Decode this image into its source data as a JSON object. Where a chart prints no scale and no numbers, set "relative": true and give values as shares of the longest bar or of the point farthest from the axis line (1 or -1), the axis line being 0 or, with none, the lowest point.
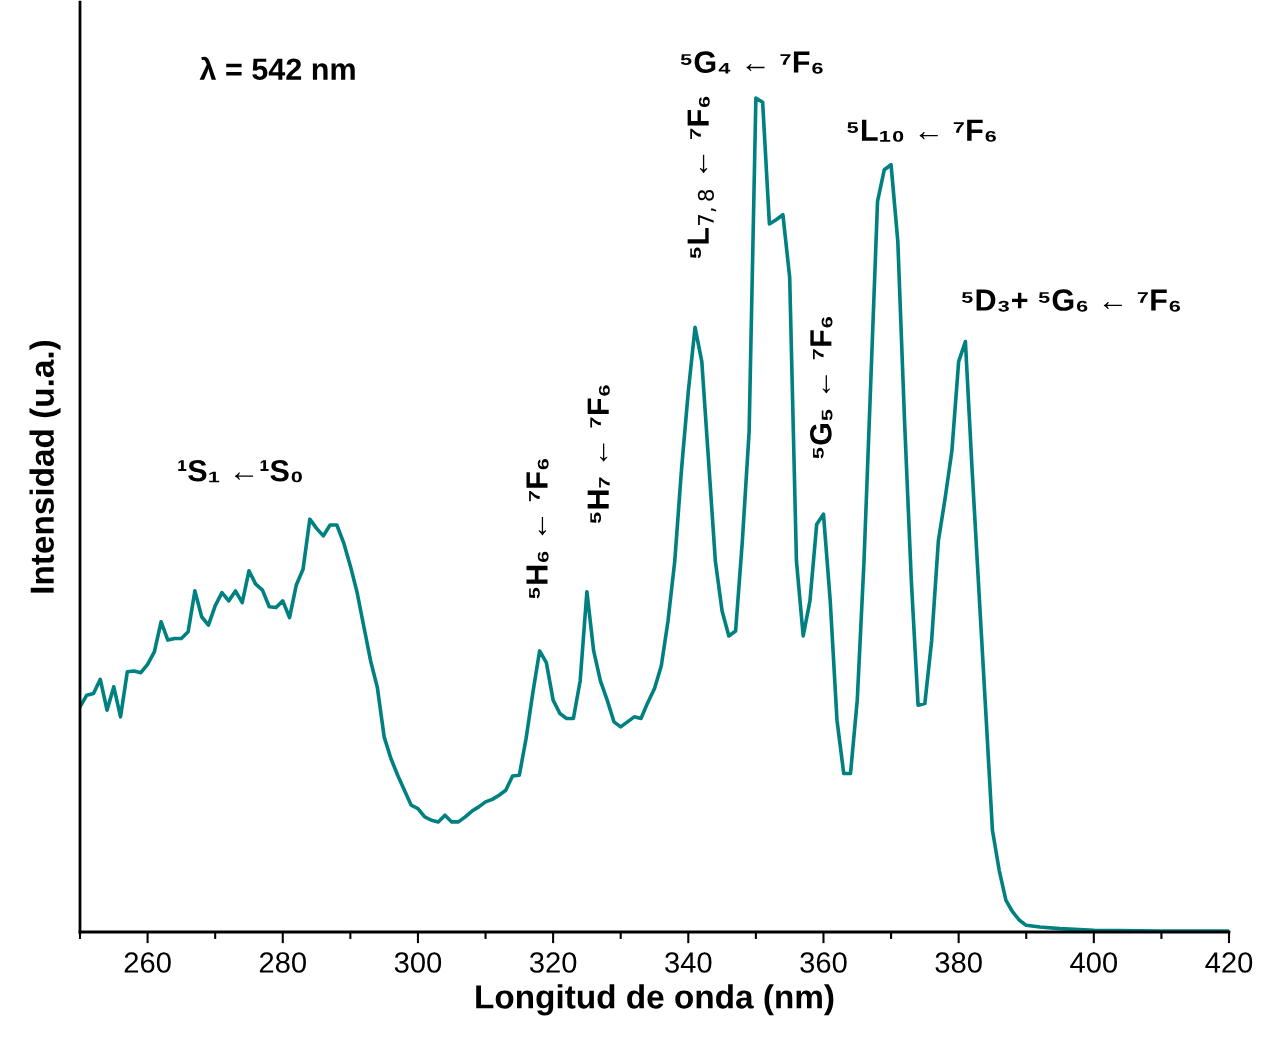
{
  "chart_data": {
    "type": "line",
    "xlabel": "Longitud de onda (nm)",
    "ylabel": "Intensidad (u.a.)",
    "relative": true,
    "x": [
      250,
      251,
      252,
      253,
      254,
      255,
      256,
      257,
      258,
      259,
      260,
      261,
      262,
      263,
      264,
      265,
      266,
      267,
      268,
      269,
      270,
      271,
      272,
      273,
      274,
      275,
      276,
      277,
      278,
      279,
      280,
      281,
      282,
      283,
      284,
      285,
      286,
      287,
      288,
      289,
      290,
      291,
      292,
      293,
      294,
      295,
      296,
      297,
      298,
      299,
      300,
      301,
      302,
      303,
      304,
      305,
      306,
      307,
      308,
      309,
      310,
      311,
      312,
      313,
      314,
      315,
      316,
      317,
      318,
      319,
      320,
      321,
      322,
      323,
      324,
      325,
      326,
      327,
      328,
      329,
      330,
      331,
      332,
      333,
      334,
      335,
      336,
      337,
      338,
      339,
      340,
      341,
      342,
      343,
      344,
      345,
      346,
      347,
      348,
      349,
      350,
      351,
      352,
      353,
      354,
      355,
      356,
      357,
      358,
      359,
      360,
      361,
      362,
      363,
      364,
      365,
      366,
      367,
      368,
      369,
      370,
      371,
      372,
      373,
      374,
      375,
      376,
      377,
      378,
      379,
      380,
      381,
      382,
      383,
      384,
      385,
      386,
      387,
      388,
      389,
      390,
      392,
      395,
      400,
      410,
      420
    ],
    "series": [
      {
        "color": "#008080",
        "values": [
          0.27,
          0.284,
          0.286,
          0.303,
          0.266,
          0.294,
          0.258,
          0.312,
          0.313,
          0.311,
          0.321,
          0.336,
          0.372,
          0.35,
          0.352,
          0.352,
          0.36,
          0.409,
          0.378,
          0.368,
          0.391,
          0.407,
          0.397,
          0.409,
          0.395,
          0.433,
          0.417,
          0.41,
          0.39,
          0.389,
          0.397,
          0.377,
          0.416,
          0.435,
          0.495,
          0.484,
          0.475,
          0.488,
          0.488,
          0.467,
          0.439,
          0.407,
          0.366,
          0.325,
          0.293,
          0.234,
          0.208,
          0.188,
          0.17,
          0.152,
          0.148,
          0.138,
          0.134,
          0.132,
          0.14,
          0.132,
          0.132,
          0.138,
          0.145,
          0.15,
          0.156,
          0.159,
          0.164,
          0.17,
          0.187,
          0.188,
          0.232,
          0.287,
          0.337,
          0.323,
          0.278,
          0.262,
          0.256,
          0.256,
          0.301,
          0.408,
          0.337,
          0.301,
          0.278,
          0.252,
          0.246,
          0.252,
          0.258,
          0.256,
          0.275,
          0.292,
          0.319,
          0.373,
          0.445,
          0.555,
          0.648,
          0.725,
          0.684,
          0.565,
          0.445,
          0.385,
          0.355,
          0.361,
          0.469,
          0.6,
          1.0,
          0.995,
          0.849,
          0.854,
          0.86,
          0.785,
          0.445,
          0.355,
          0.397,
          0.489,
          0.501,
          0.397,
          0.254,
          0.19,
          0.19,
          0.278,
          0.445,
          0.66,
          0.876,
          0.914,
          0.92,
          0.828,
          0.612,
          0.421,
          0.272,
          0.274,
          0.349,
          0.469,
          0.52,
          0.577,
          0.684,
          0.708,
          0.553,
          0.409,
          0.266,
          0.122,
          0.074,
          0.038,
          0.024,
          0.014,
          0.008,
          0.006,
          0.004,
          0.002,
          0.001,
          0.001
        ]
      }
    ],
    "xlim": [
      250,
      420
    ],
    "xticks": [
      {
        "value": 250,
        "label": null
      },
      260,
      {
        "value": 270,
        "label": null
      },
      280,
      {
        "value": 290,
        "label": null
      },
      300,
      {
        "value": 310,
        "label": null
      },
      320,
      {
        "value": 330,
        "label": null
      },
      340,
      {
        "value": 350,
        "label": null
      },
      360,
      {
        "value": 370,
        "label": null
      },
      380,
      {
        "value": 390,
        "label": null
      },
      400,
      {
        "value": 410,
        "label": null
      },
      420
    ],
    "grid": false,
    "legend": false,
    "annotations": [
      "λ = 542 nm",
      {
        "text": "¹S₁ ←¹S₀",
        "x": 284,
        "y": 0.495
      },
      {
        "text": "⁵H₆ ← ⁷F₆",
        "x": 318,
        "y": 0.337
      },
      {
        "text": "⁵H₇ ← ⁷F₆",
        "x": 325,
        "y": 0.408
      },
      {
        "text": "⁵L$_{7,8}$ ← ⁷F₆",
        "x": 341,
        "y": 0.725
      },
      {
        "text": "⁵G₄ ← ⁷F₆",
        "x": 350,
        "y": 1.0
      },
      {
        "text": "⁵G₅ ← ⁷F₆",
        "x": 360,
        "y": 0.501
      },
      {
        "text": "⁵L₁₀ ← ⁷F₆",
        "x": 370,
        "y": 0.92
      },
      {
        "text": "⁵D₃+ ⁵G₆ ← ⁷F₆",
        "x": 381,
        "y": 0.708
      }
    ]
  }
}
